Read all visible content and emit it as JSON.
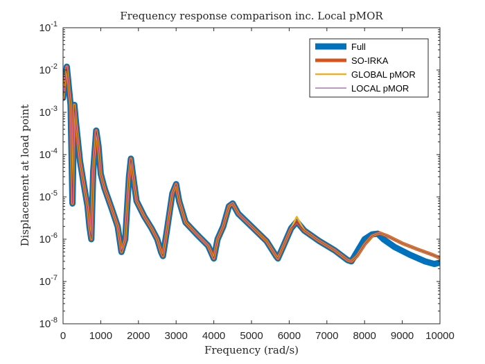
{
  "chart_data": {
    "type": "line",
    "title": "Frequency response comparison inc. Local pMOR",
    "xlabel": "Frequency (rad/s)",
    "ylabel": "Displacement at load point",
    "xlim": [
      0,
      10000
    ],
    "ylim": [
      1e-08,
      0.1
    ],
    "yscale": "log",
    "grid": false,
    "legend_position": "top-right",
    "x_ticks": [
      0,
      1000,
      2000,
      3000,
      4000,
      5000,
      6000,
      7000,
      8000,
      9000,
      10000
    ],
    "x_tick_labels": [
      "0",
      "1000",
      "2000",
      "3000",
      "4000",
      "5000",
      "6000",
      "7000",
      "8000",
      "9000",
      "10000"
    ],
    "y_ticks": [
      1e-08,
      1e-07,
      1e-06,
      1e-05,
      0.0001,
      0.001,
      0.01,
      0.1
    ],
    "y_tick_labels": [
      {
        "base": "10",
        "exp": "-8"
      },
      {
        "base": "10",
        "exp": "-7"
      },
      {
        "base": "10",
        "exp": "-6"
      },
      {
        "base": "10",
        "exp": "-5"
      },
      {
        "base": "10",
        "exp": "-4"
      },
      {
        "base": "10",
        "exp": "-3"
      },
      {
        "base": "10",
        "exp": "-2"
      },
      {
        "base": "10",
        "exp": "-1"
      }
    ],
    "series": [
      {
        "name": "Full",
        "color": "#0072BD",
        "x": [
          0,
          100,
          200,
          250,
          300,
          350,
          450,
          550,
          650,
          700,
          750,
          800,
          880,
          940,
          1000,
          1100,
          1300,
          1450,
          1550,
          1650,
          1750,
          1800,
          1850,
          1950,
          2150,
          2350,
          2500,
          2600,
          2650,
          2750,
          2900,
          3000,
          3080,
          3250,
          3550,
          3850,
          4000,
          4100,
          4250,
          4400,
          4500,
          4650,
          5000,
          5400,
          5650,
          5700,
          5850,
          6050,
          6200,
          6400,
          6800,
          7200,
          7550,
          7650,
          7800,
          8000,
          8200,
          8350,
          8500,
          8800,
          9200,
          9600,
          9850,
          10000
        ],
        "y": [
          0.0022,
          0.012,
          0.0015,
          7e-06,
          0.0015,
          0.0005,
          7e-05,
          2e-05,
          6e-06,
          2e-06,
          1e-06,
          4e-05,
          0.00037,
          0.00016,
          3.5e-05,
          1.6e-05,
          5e-06,
          2e-06,
          5e-07,
          1e-06,
          3e-05,
          8e-05,
          3.6e-05,
          8e-06,
          3.5e-06,
          1.8e-06,
          1e-06,
          5e-07,
          4e-07,
          1.5e-06,
          1.2e-05,
          2e-05,
          8e-06,
          2.5e-06,
          1.3e-06,
          7e-07,
          3.5e-07,
          1e-06,
          2e-06,
          6e-06,
          7e-06,
          4e-06,
          2e-06,
          9e-07,
          4e-07,
          3.5e-07,
          7e-07,
          1.8e-06,
          2.6e-06,
          1.6e-06,
          9e-07,
          5.5e-07,
          3.2e-07,
          3e-07,
          5e-07,
          1e-06,
          1.3e-06,
          1.35e-06,
          1e-06,
          6.5e-07,
          4.3e-07,
          3e-07,
          2.6e-07,
          2.8e-07
        ]
      },
      {
        "name": "SO-IRKA",
        "color": "#D95319",
        "x": [
          0,
          100,
          200,
          250,
          300,
          350,
          450,
          550,
          650,
          700,
          750,
          800,
          880,
          940,
          1000,
          1100,
          1300,
          1450,
          1550,
          1650,
          1750,
          1800,
          1850,
          1950,
          2150,
          2350,
          2500,
          2600,
          2650,
          2750,
          2900,
          3000,
          3080,
          3250,
          3550,
          3850,
          4000,
          4100,
          4250,
          4400,
          4500,
          4650,
          5000,
          5400,
          5650,
          5700,
          5850,
          6050,
          6200,
          6400,
          6800,
          7200,
          7550,
          7650,
          7800,
          8000,
          8200,
          8400,
          8600,
          9000,
          9400,
          9800,
          10000
        ],
        "y": [
          0.0022,
          0.012,
          0.0015,
          7e-06,
          0.0015,
          0.0005,
          7e-05,
          2e-05,
          6e-06,
          2e-06,
          1e-06,
          4e-05,
          0.00037,
          0.00016,
          3.5e-05,
          1.6e-05,
          5e-06,
          2e-06,
          5e-07,
          1e-06,
          3e-05,
          8e-05,
          3.6e-05,
          8e-06,
          3.5e-06,
          1.8e-06,
          1e-06,
          5e-07,
          4e-07,
          1.5e-06,
          1.2e-05,
          2e-05,
          8e-06,
          2.5e-06,
          1.3e-06,
          7e-07,
          3.5e-07,
          1e-06,
          2e-06,
          6e-06,
          7e-06,
          4e-06,
          2e-06,
          9e-07,
          4e-07,
          3.5e-07,
          7e-07,
          1.8e-06,
          2.6e-06,
          1.6e-06,
          9e-07,
          5.5e-07,
          3.2e-07,
          3e-07,
          4e-07,
          7.5e-07,
          1.2e-06,
          1.4e-06,
          1.2e-06,
          8e-07,
          5.8e-07,
          4.3e-07,
          3.6e-07
        ]
      },
      {
        "name": "GLOBAL pMOR",
        "color": "#EDB120",
        "x": [
          0,
          100,
          200,
          250,
          300,
          350,
          450,
          550,
          650,
          700,
          750,
          800,
          880,
          940,
          1000,
          1100,
          1300,
          1450,
          1550,
          1650,
          1750,
          1800,
          1850,
          1950,
          2150,
          2350,
          2500,
          2600,
          2650,
          2750,
          2900,
          3000,
          3080,
          3250,
          3550,
          3850,
          4000,
          4100,
          4250,
          4400,
          4500,
          4650,
          5000,
          5400,
          5650,
          5700,
          5850,
          6050,
          6200,
          6400,
          6800,
          7200,
          7550,
          7650,
          7800,
          8000,
          8200,
          8400,
          8600,
          9000,
          9400,
          9800,
          10000
        ],
        "y": [
          0.0022,
          0.012,
          0.0015,
          7e-06,
          0.0015,
          0.0005,
          7e-05,
          2e-05,
          6e-06,
          2e-06,
          1e-06,
          4e-05,
          0.00037,
          0.00016,
          3.5e-05,
          1.6e-05,
          5e-06,
          2e-06,
          5e-07,
          1e-06,
          3e-05,
          8e-05,
          3.6e-05,
          8e-06,
          3.5e-06,
          1.8e-06,
          1e-06,
          5e-07,
          4e-07,
          1.5e-06,
          1.2e-05,
          2e-05,
          8e-06,
          2.5e-06,
          1.3e-06,
          7e-07,
          3.5e-07,
          1e-06,
          2e-06,
          6e-06,
          7e-06,
          4e-06,
          2e-06,
          9e-07,
          4e-07,
          3.5e-07,
          7e-07,
          1.8e-06,
          3.4e-06,
          1.6e-06,
          9e-07,
          5.5e-07,
          3.2e-07,
          3e-07,
          4e-07,
          7.5e-07,
          1.2e-06,
          1.4e-06,
          1.2e-06,
          8e-07,
          5.8e-07,
          4.3e-07,
          3.6e-07
        ]
      },
      {
        "name": "LOCAL pMOR",
        "color": "#7E2F8E",
        "x": [
          0,
          100,
          200,
          250,
          300,
          350,
          450,
          550,
          650,
          700,
          750,
          800,
          880,
          940,
          1000,
          1100,
          1300,
          1450,
          1550,
          1650,
          1750,
          1800,
          1850,
          1950,
          2150,
          2350,
          2500,
          2600,
          2650,
          2750,
          2900,
          3000,
          3080,
          3250,
          3550,
          3850,
          4000,
          4100,
          4250,
          4400,
          4500,
          4650,
          5000,
          5400,
          5650,
          5700,
          5850,
          6050,
          6200,
          6400,
          6800,
          7200,
          7550,
          7650,
          7800,
          8000,
          8200,
          8400,
          8600,
          9000,
          9400,
          9800,
          10000
        ],
        "y": [
          0.0022,
          0.012,
          0.0015,
          7e-06,
          0.0015,
          0.0005,
          7e-05,
          2e-05,
          6e-06,
          2e-06,
          1e-06,
          4e-05,
          0.00037,
          0.00016,
          3.5e-05,
          1.6e-05,
          5e-06,
          2e-06,
          5e-07,
          1e-06,
          3e-05,
          8e-05,
          3.6e-05,
          8e-06,
          3.5e-06,
          1.8e-06,
          1e-06,
          5e-07,
          4e-07,
          1.5e-06,
          1.2e-05,
          2e-05,
          8e-06,
          2.5e-06,
          1.3e-06,
          7e-07,
          3.5e-07,
          1e-06,
          2e-06,
          6e-06,
          7e-06,
          4e-06,
          2e-06,
          9e-07,
          4e-07,
          3.5e-07,
          7e-07,
          1.8e-06,
          2.6e-06,
          1.6e-06,
          9e-07,
          5.5e-07,
          3.2e-07,
          3e-07,
          4e-07,
          7.5e-07,
          1.2e-06,
          1.4e-06,
          1.2e-06,
          8e-07,
          5.8e-07,
          4.3e-07,
          3.6e-07
        ]
      }
    ]
  }
}
